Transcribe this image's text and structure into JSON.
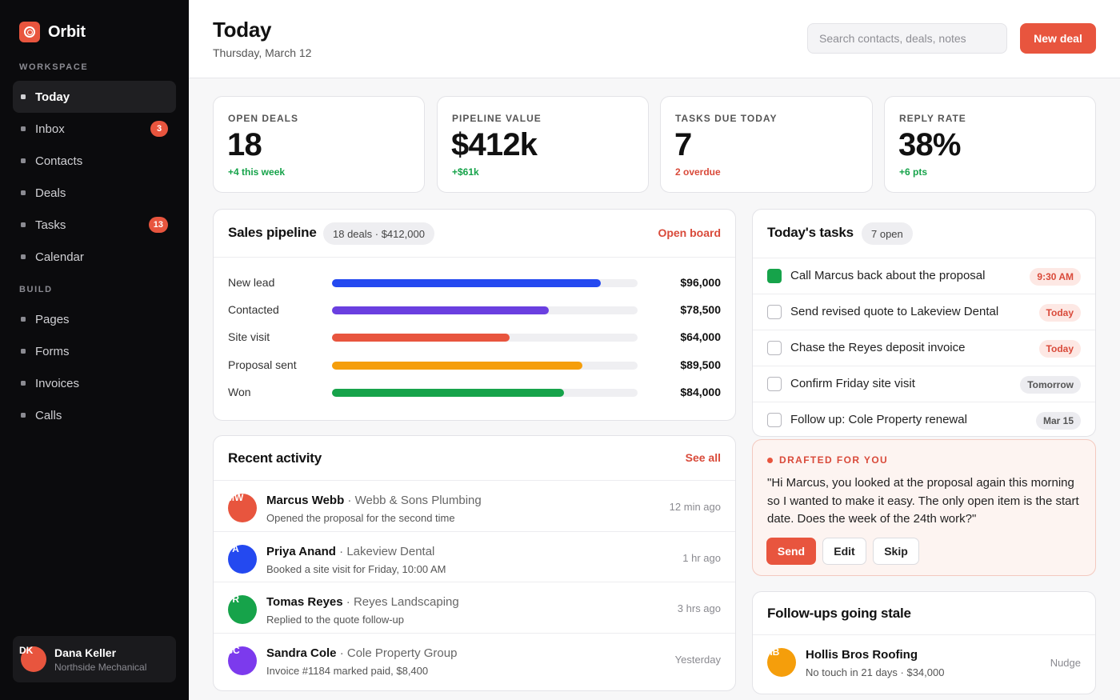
{
  "app": {
    "name": "Orbit",
    "logo_icon": "orbit-logo-icon",
    "accent": "#e8553e"
  },
  "sidebar": {
    "workspace_label": "WORKSPACE",
    "workspace_items": [
      {
        "label": "Today",
        "active": true
      },
      {
        "label": "Inbox",
        "badge": "3"
      },
      {
        "label": "Contacts"
      },
      {
        "label": "Deals"
      },
      {
        "label": "Tasks",
        "badge": "13"
      },
      {
        "label": "Calendar"
      }
    ],
    "build_label": "BUILD",
    "build_items": [
      {
        "label": "Pages"
      },
      {
        "label": "Forms"
      },
      {
        "label": "Invoices"
      },
      {
        "label": "Calls"
      }
    ],
    "user": {
      "initials": "DK",
      "name": "Dana Keller",
      "org": "Northside Mechanical",
      "color": "#e8553e"
    }
  },
  "header": {
    "title": "Today",
    "date": "Thursday, March 12",
    "search_placeholder": "Search contacts, deals, notes",
    "new_deal_label": "New deal"
  },
  "stats": [
    {
      "label": "OPEN DEALS",
      "value": "18",
      "delta": "+4 this week",
      "tone": "green"
    },
    {
      "label": "PIPELINE VALUE",
      "value": "$412k",
      "delta": "+$61k",
      "tone": "green"
    },
    {
      "label": "TASKS DUE TODAY",
      "value": "7",
      "delta": "2 overdue",
      "tone": "red"
    },
    {
      "label": "REPLY RATE",
      "value": "38%",
      "delta": "+6 pts",
      "tone": "green"
    }
  ],
  "pipeline": {
    "title": "Sales pipeline",
    "pill": "18 deals · $412,000",
    "link": "Open board",
    "stages": [
      {
        "label": "New lead",
        "amount": "$96,000",
        "fill": 0.88,
        "color": "#2449f0"
      },
      {
        "label": "Contacted",
        "amount": "$78,500",
        "fill": 0.71,
        "color": "#6a3fe0"
      },
      {
        "label": "Site visit",
        "amount": "$64,000",
        "fill": 0.58,
        "color": "#e8553e"
      },
      {
        "label": "Proposal sent",
        "amount": "$89,500",
        "fill": 0.82,
        "color": "#f59e0b"
      },
      {
        "label": "Won",
        "amount": "$84,000",
        "fill": 0.76,
        "color": "#16a34a"
      }
    ]
  },
  "activity": {
    "title": "Recent activity",
    "link": "See all",
    "items": [
      {
        "initials": "MW",
        "color": "#e8553e",
        "name": "Marcus Webb",
        "org": "Webb & Sons Plumbing",
        "detail": "Opened the proposal for the second time",
        "time": "12 min ago"
      },
      {
        "initials": "PA",
        "color": "#2449f0",
        "name": "Priya Anand",
        "org": "Lakeview Dental",
        "detail": "Booked a site visit for Friday, 10:00 AM",
        "time": "1 hr ago"
      },
      {
        "initials": "TR",
        "color": "#16a34a",
        "name": "Tomas Reyes",
        "org": "Reyes Landscaping",
        "detail": "Replied to the quote follow-up",
        "time": "3 hrs ago"
      },
      {
        "initials": "SC",
        "color": "#7c3aed",
        "name": "Sandra Cole",
        "org": "Cole Property Group",
        "detail": "Invoice #1184 marked paid, $8,400",
        "time": "Yesterday"
      }
    ]
  },
  "tasks": {
    "title": "Today's tasks",
    "pill": "7 open",
    "items": [
      {
        "text": "Call Marcus back about the proposal",
        "tag": "9:30 AM",
        "tone": "red",
        "done": true
      },
      {
        "text": "Send revised quote to Lakeview Dental",
        "tag": "Today",
        "tone": "red",
        "done": false
      },
      {
        "text": "Chase the Reyes deposit invoice",
        "tag": "Today",
        "tone": "red",
        "done": false
      },
      {
        "text": "Confirm Friday site visit",
        "tag": "Tomorrow",
        "tone": "gray",
        "done": false
      },
      {
        "text": "Follow up: Cole Property renewal",
        "tag": "Mar 15",
        "tone": "gray",
        "done": false
      }
    ]
  },
  "draft": {
    "label": "DRAFTED FOR YOU",
    "text": "\"Hi Marcus, you looked at the proposal again this morning so I wanted to make it easy. The only open item is the start date. Does the week of the 24th work?\"",
    "send": "Send",
    "edit": "Edit",
    "skip": "Skip"
  },
  "stale": {
    "title": "Follow-ups going stale",
    "items": [
      {
        "initials": "HB",
        "color": "#f59e0b",
        "name": "Hollis Bros Roofing",
        "detail": "No touch in 21 days · $34,000",
        "action": "Nudge"
      }
    ]
  }
}
